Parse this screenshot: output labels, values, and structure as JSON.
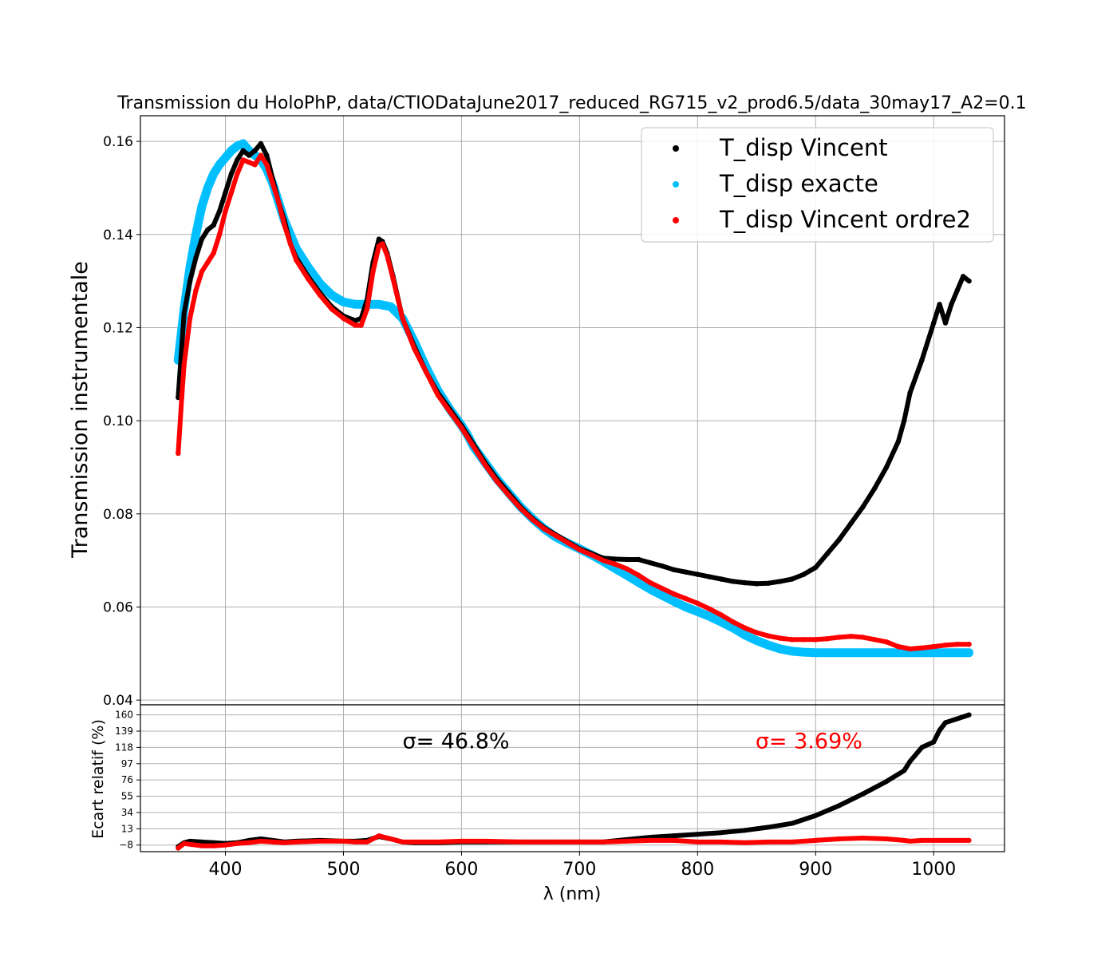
{
  "chart_data": [
    {
      "type": "scatter",
      "panel": "main",
      "title": "Transmission du HoloPhP, data/CTIODataJune2017_reduced_RG715_v2_prod6.5/data_30may17_A2=0.1",
      "xlabel": "λ (nm)",
      "ylabel": "Transmission instrumentale",
      "xlim": [
        328,
        1060
      ],
      "ylim": [
        0.039,
        0.1655
      ],
      "xticks": [
        400,
        500,
        600,
        700,
        800,
        900,
        1000
      ],
      "yticks": [
        0.04,
        0.06,
        0.08,
        0.1,
        0.12,
        0.14,
        0.16
      ],
      "ytick_labels": [
        "0.04",
        "0.06",
        "0.08",
        "0.10",
        "0.12",
        "0.14",
        "0.16"
      ],
      "grid": true,
      "legend_position": "top-right",
      "series": [
        {
          "name": "T_disp Vincent",
          "color": "#000000",
          "x": [
            360,
            365,
            370,
            375,
            380,
            385,
            390,
            395,
            400,
            405,
            410,
            415,
            420,
            425,
            430,
            435,
            440,
            445,
            450,
            455,
            460,
            470,
            480,
            490,
            500,
            510,
            515,
            520,
            525,
            530,
            533,
            537,
            542,
            550,
            560,
            570,
            580,
            590,
            600,
            610,
            620,
            630,
            640,
            650,
            660,
            670,
            680,
            690,
            700,
            710,
            720,
            730,
            740,
            750,
            760,
            770,
            780,
            790,
            800,
            810,
            820,
            830,
            840,
            850,
            860,
            870,
            880,
            890,
            900,
            910,
            920,
            930,
            940,
            950,
            960,
            970,
            975,
            980,
            990,
            1000,
            1005,
            1010,
            1015,
            1020,
            1025,
            1030
          ],
          "y": [
            0.105,
            0.123,
            0.13,
            0.135,
            0.139,
            0.141,
            0.142,
            0.145,
            0.149,
            0.153,
            0.156,
            0.158,
            0.157,
            0.158,
            0.1595,
            0.157,
            0.152,
            0.147,
            0.143,
            0.138,
            0.135,
            0.131,
            0.1275,
            0.1245,
            0.1225,
            0.1215,
            0.122,
            0.126,
            0.134,
            0.139,
            0.1385,
            0.136,
            0.131,
            0.122,
            0.116,
            0.1105,
            0.106,
            0.1025,
            0.099,
            0.095,
            0.091,
            0.0875,
            0.0845,
            0.0815,
            0.079,
            0.077,
            0.0755,
            0.074,
            0.0725,
            0.0715,
            0.0705,
            0.0703,
            0.0702,
            0.0702,
            0.0695,
            0.0688,
            0.068,
            0.0675,
            0.067,
            0.0665,
            0.066,
            0.0655,
            0.0652,
            0.065,
            0.0651,
            0.0655,
            0.066,
            0.067,
            0.0685,
            0.0715,
            0.0745,
            0.078,
            0.0815,
            0.0855,
            0.09,
            0.0955,
            0.1,
            0.106,
            0.113,
            0.121,
            0.125,
            0.121,
            0.125,
            0.128,
            0.131,
            0.13
          ]
        },
        {
          "name": "T_disp exacte",
          "color": "#00bfff",
          "x": [
            360,
            365,
            370,
            375,
            380,
            385,
            390,
            395,
            400,
            405,
            410,
            415,
            420,
            425,
            430,
            435,
            440,
            445,
            450,
            460,
            470,
            480,
            490,
            500,
            510,
            520,
            530,
            540,
            550,
            560,
            570,
            580,
            590,
            600,
            605,
            610,
            620,
            630,
            640,
            650,
            660,
            670,
            680,
            690,
            700,
            710,
            720,
            730,
            740,
            750,
            760,
            770,
            780,
            790,
            800,
            810,
            820,
            830,
            840,
            850,
            860,
            870,
            880,
            890,
            900,
            910,
            920,
            930,
            940,
            950,
            960,
            970,
            980,
            990,
            1000,
            1010,
            1020,
            1030
          ],
          "y": [
            0.113,
            0.124,
            0.133,
            0.14,
            0.146,
            0.15,
            0.153,
            0.155,
            0.1565,
            0.158,
            0.159,
            0.1595,
            0.158,
            0.157,
            0.156,
            0.154,
            0.151,
            0.147,
            0.143,
            0.137,
            0.133,
            0.1295,
            0.127,
            0.1255,
            0.125,
            0.125,
            0.125,
            0.1245,
            0.122,
            0.117,
            0.1115,
            0.1065,
            0.1025,
            0.099,
            0.097,
            0.0945,
            0.091,
            0.0875,
            0.0845,
            0.0815,
            0.079,
            0.0768,
            0.075,
            0.0737,
            0.0725,
            0.0712,
            0.0698,
            0.0683,
            0.0668,
            0.0653,
            0.0638,
            0.0625,
            0.0612,
            0.06,
            0.059,
            0.058,
            0.0568,
            0.0555,
            0.054,
            0.0528,
            0.0518,
            0.051,
            0.0505,
            0.0503,
            0.0502,
            0.0502,
            0.0502,
            0.0502,
            0.0502,
            0.0502,
            0.0502,
            0.0502,
            0.0502,
            0.0502,
            0.0502,
            0.0502,
            0.0502,
            0.0502
          ]
        },
        {
          "name": "T_disp Vincent ordre2",
          "color": "#ff0000",
          "x": [
            360,
            363,
            365,
            370,
            375,
            380,
            385,
            390,
            395,
            400,
            405,
            410,
            415,
            420,
            425,
            430,
            435,
            440,
            445,
            450,
            455,
            460,
            470,
            480,
            490,
            500,
            510,
            515,
            520,
            525,
            530,
            533,
            537,
            542,
            550,
            560,
            570,
            580,
            590,
            600,
            610,
            620,
            630,
            640,
            650,
            660,
            670,
            680,
            690,
            700,
            710,
            720,
            730,
            740,
            750,
            760,
            770,
            780,
            790,
            800,
            810,
            820,
            830,
            840,
            850,
            860,
            870,
            880,
            890,
            900,
            910,
            920,
            930,
            940,
            950,
            960,
            970,
            980,
            990,
            1000,
            1010,
            1020,
            1030
          ],
          "y": [
            0.093,
            0.105,
            0.112,
            0.122,
            0.128,
            0.132,
            0.134,
            0.136,
            0.14,
            0.145,
            0.149,
            0.153,
            0.156,
            0.1555,
            0.155,
            0.157,
            0.155,
            0.151,
            0.147,
            0.142,
            0.138,
            0.1345,
            0.1305,
            0.127,
            0.124,
            0.122,
            0.1205,
            0.1205,
            0.124,
            0.132,
            0.1375,
            0.138,
            0.1355,
            0.1305,
            0.122,
            0.1155,
            0.1105,
            0.1055,
            0.102,
            0.0985,
            0.0945,
            0.0905,
            0.087,
            0.084,
            0.0812,
            0.0788,
            0.0768,
            0.0753,
            0.0738,
            0.0723,
            0.0712,
            0.07,
            0.0692,
            0.0682,
            0.0668,
            0.0652,
            0.064,
            0.0628,
            0.0618,
            0.0608,
            0.0596,
            0.0583,
            0.0568,
            0.0555,
            0.0545,
            0.0538,
            0.0533,
            0.053,
            0.053,
            0.053,
            0.0532,
            0.0535,
            0.0537,
            0.0535,
            0.053,
            0.0525,
            0.0515,
            0.051,
            0.0512,
            0.0515,
            0.0518,
            0.052,
            0.052
          ]
        }
      ]
    },
    {
      "type": "scatter",
      "panel": "residuals",
      "xlabel": "λ (nm)",
      "ylabel": "Ecart relatif (%)",
      "xlim": [
        328,
        1060
      ],
      "ylim": [
        -16.5,
        173
      ],
      "xticks": [
        400,
        500,
        600,
        700,
        800,
        900,
        1000
      ],
      "yticks": [
        -8,
        13,
        34,
        55,
        76,
        97,
        118,
        139,
        160
      ],
      "ytick_labels": [
        "−8",
        "13",
        "34",
        "55",
        "76",
        "97",
        "118",
        "139",
        "160"
      ],
      "grid": true,
      "annotations": [
        {
          "text": "σ= 46.8%",
          "x": 550,
          "y": 126,
          "color": "#000000"
        },
        {
          "text": "σ= 3.69%",
          "x": 849,
          "y": 126,
          "color": "#ff0000"
        }
      ],
      "series": [
        {
          "name": "T_disp Vincent",
          "color": "#000000",
          "x": [
            360,
            365,
            370,
            380,
            390,
            400,
            410,
            420,
            430,
            440,
            450,
            460,
            480,
            500,
            510,
            520,
            530,
            540,
            550,
            560,
            580,
            600,
            620,
            650,
            680,
            700,
            720,
            740,
            760,
            780,
            800,
            820,
            840,
            860,
            880,
            900,
            920,
            940,
            960,
            975,
            980,
            990,
            1000,
            1005,
            1010,
            1020,
            1030
          ],
          "y": [
            -10,
            -5,
            -3,
            -4,
            -5,
            -6,
            -5,
            -2,
            0,
            -2,
            -4,
            -3,
            -2,
            -3,
            -3,
            -2,
            3,
            0,
            -4,
            -5,
            -5,
            -4,
            -4,
            -4,
            -4,
            -4,
            -4,
            -1,
            2,
            4,
            6,
            8,
            11,
            15,
            20,
            30,
            43,
            58,
            74,
            88,
            100,
            118,
            125,
            140,
            150,
            155,
            160
          ]
        },
        {
          "name": "T_disp Vincent ordre2",
          "color": "#ff0000",
          "x": [
            360,
            365,
            370,
            380,
            390,
            400,
            410,
            420,
            430,
            440,
            450,
            460,
            480,
            500,
            510,
            520,
            530,
            540,
            550,
            560,
            580,
            600,
            620,
            650,
            680,
            700,
            720,
            740,
            760,
            780,
            800,
            820,
            840,
            860,
            880,
            900,
            920,
            940,
            960,
            975,
            980,
            990,
            1000,
            1010,
            1020,
            1030
          ],
          "y": [
            -12,
            -6,
            -7,
            -9,
            -9,
            -8,
            -6,
            -5,
            -3,
            -4,
            -5,
            -4,
            -3,
            -3,
            -4,
            -4,
            4,
            0,
            -4,
            -4,
            -4,
            -3,
            -3,
            -4,
            -4,
            -4,
            -4,
            -3,
            -2,
            -2,
            -4,
            -4,
            -5,
            -4,
            -4,
            -2,
            0,
            1,
            0,
            -2,
            -3,
            -2,
            -2,
            -2,
            -2,
            -2
          ]
        }
      ]
    }
  ]
}
